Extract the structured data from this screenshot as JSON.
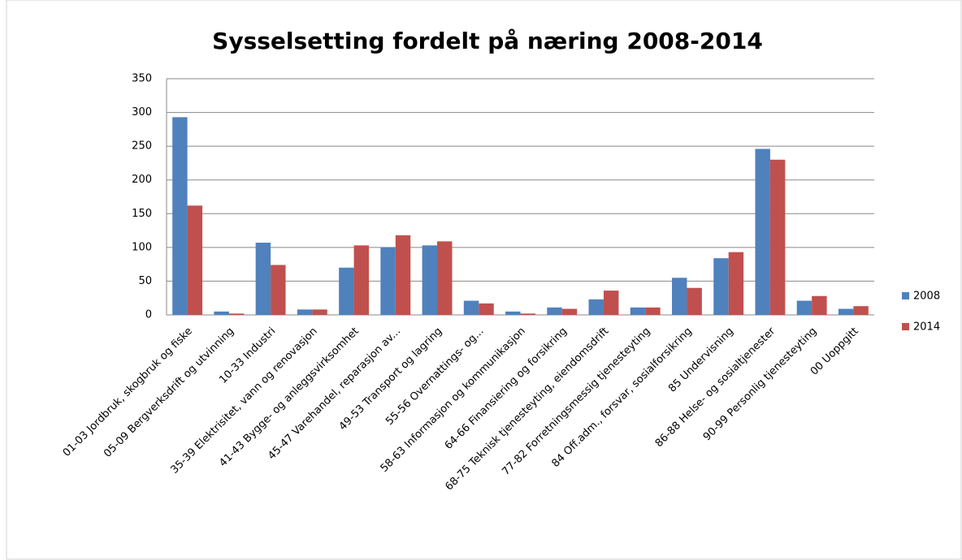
{
  "chart_data": {
    "type": "bar",
    "title": "Sysselsetting fordelt på næring 2008-2014",
    "categories": [
      "01-03 Jordbruk, skogbruk og fiske",
      "05-09 Bergverksdrift og utvinning",
      "10-33 Industri",
      "35-39 Elektrisitet, vann og renovasjon",
      "41-43 Bygge- og anleggsvirksomhet",
      "45-47 Varehandel, reparasjon av...",
      "49-53 Transport og lagring",
      "55-56 Overnattings- og...",
      "58-63 Informasjon og kommunikasjon",
      "64-66 Finansiering og forsikring",
      "68-75 Teknisk tjenesteyting, eiendomsdrift",
      "77-82 Forretningsmessig tjenesteyting",
      "84 Off.adm., forsvar, sosialforsikring",
      "85 Undervisning",
      "86-88 Helse- og sosialtjenester",
      "90-99 Personlig tjenesteyting",
      "00 Uoppgitt"
    ],
    "series": [
      {
        "name": "2008",
        "color": "#4f81bd",
        "values": [
          293,
          5,
          107,
          8,
          70,
          100,
          103,
          21,
          5,
          11,
          23,
          11,
          55,
          84,
          246,
          21,
          9
        ]
      },
      {
        "name": "2014",
        "color": "#c0504d",
        "values": [
          162,
          2,
          74,
          8,
          103,
          118,
          109,
          17,
          2,
          9,
          36,
          11,
          40,
          93,
          230,
          28,
          13
        ]
      }
    ],
    "ylim": [
      0,
      350
    ],
    "yticks": [
      0,
      50,
      100,
      150,
      200,
      250,
      300,
      350
    ],
    "grid": true,
    "legend": "right"
  }
}
